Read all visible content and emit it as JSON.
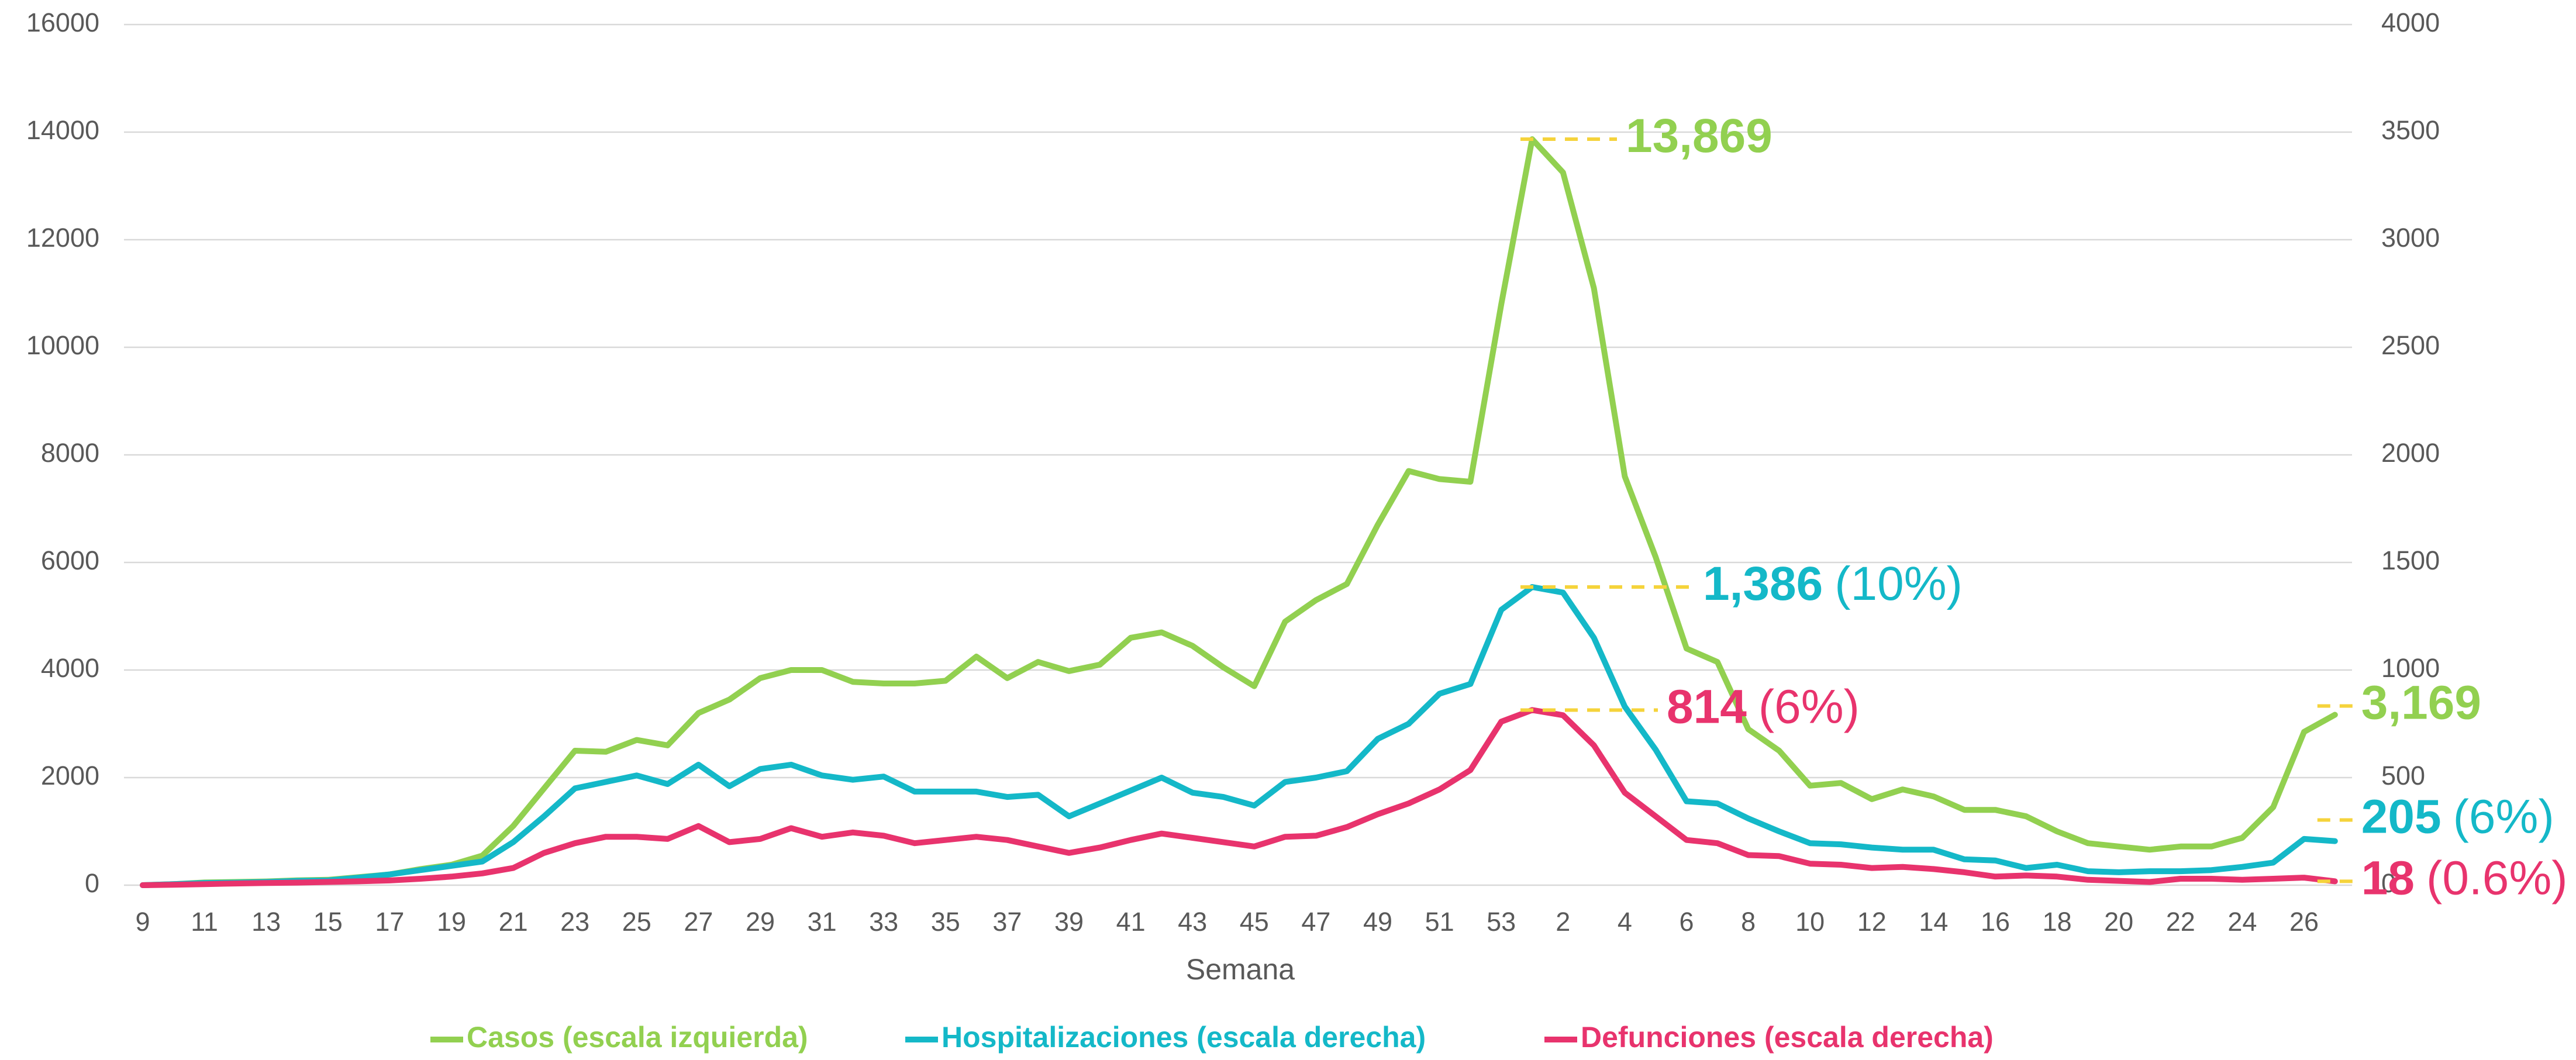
{
  "chart_data": {
    "type": "line",
    "x_label": "Semana",
    "categories": [
      "9",
      null,
      "11",
      null,
      "13",
      null,
      "15",
      null,
      "17",
      null,
      "19",
      null,
      "21",
      null,
      "23",
      null,
      "25",
      null,
      "27",
      null,
      "29",
      null,
      "31",
      null,
      "33",
      null,
      "35",
      null,
      "37",
      null,
      "39",
      null,
      "41",
      null,
      "43",
      null,
      "45",
      null,
      "47",
      null,
      "49",
      null,
      "51",
      null,
      "53",
      null,
      "2",
      null,
      "4",
      null,
      "6",
      null,
      "8",
      null,
      "10",
      null,
      "12",
      null,
      "14",
      null,
      "16",
      null,
      "18",
      null,
      "20",
      null,
      "22",
      null,
      "24",
      null,
      "26",
      null
    ],
    "ylim": [
      0,
      16000
    ],
    "yticks": [
      0,
      2000,
      4000,
      6000,
      8000,
      10000,
      12000,
      14000,
      16000
    ],
    "y2lim": [
      0,
      4000
    ],
    "y2ticks": [
      0,
      500,
      1000,
      1500,
      2000,
      2500,
      3000,
      3500,
      4000
    ],
    "grid": true,
    "legend": "bottom",
    "series": [
      {
        "name": "Casos (escala izquierda)",
        "color": "#92d050",
        "axis": "y",
        "values": [
          0,
          20,
          50,
          60,
          70,
          90,
          100,
          150,
          200,
          300,
          380,
          550,
          1100,
          1800,
          2500,
          2480,
          2700,
          2600,
          3200,
          3450,
          3850,
          4000,
          4000,
          3780,
          3750,
          3750,
          3800,
          4250,
          3850,
          4150,
          3980,
          4100,
          4600,
          4700,
          4450,
          4050,
          3700,
          4900,
          5300,
          5600,
          6700,
          7700,
          7550,
          7500,
          10800,
          13869,
          13250,
          11100,
          7600,
          6100,
          4400,
          4150,
          2900,
          2500,
          1850,
          1900,
          1600,
          1780,
          1650,
          1400,
          1400,
          1280,
          1000,
          780,
          720,
          660,
          720,
          720,
          880,
          1450,
          2850,
          3169
        ],
        "value_labels": [
          null,
          null,
          null,
          null,
          null,
          null,
          null,
          null,
          null,
          null,
          null,
          null,
          null,
          null,
          null,
          null,
          null,
          null,
          null,
          null,
          null,
          null,
          null,
          null,
          null,
          null,
          null,
          null,
          null,
          null,
          null,
          null,
          null,
          null,
          null,
          null,
          null,
          null,
          null,
          null,
          null,
          null,
          null,
          null,
          null,
          "13,869",
          null,
          null,
          null,
          null,
          null,
          null,
          null,
          null,
          null,
          null,
          null,
          null,
          null,
          null,
          null,
          null,
          null,
          null,
          null,
          null,
          null,
          null,
          null,
          null,
          null,
          "3,169"
        ]
      },
      {
        "name": "Hospitalizaciones (escala derecha)",
        "color": "#14b8c8",
        "axis": "y2",
        "values": [
          0,
          5,
          10,
          12,
          15,
          20,
          22,
          35,
          50,
          70,
          90,
          110,
          200,
          320,
          450,
          480,
          510,
          470,
          560,
          460,
          540,
          560,
          510,
          490,
          505,
          435,
          435,
          435,
          410,
          420,
          320,
          380,
          440,
          500,
          430,
          410,
          370,
          480,
          500,
          530,
          680,
          750,
          890,
          935,
          1280,
          1386,
          1360,
          1150,
          830,
          630,
          390,
          380,
          310,
          250,
          195,
          190,
          175,
          165,
          165,
          120,
          115,
          80,
          95,
          65,
          60,
          65,
          65,
          70,
          85,
          105,
          215,
          205
        ],
        "value_labels": [
          null,
          null,
          null,
          null,
          null,
          null,
          null,
          null,
          null,
          null,
          null,
          null,
          null,
          null,
          null,
          null,
          null,
          null,
          null,
          null,
          null,
          null,
          null,
          null,
          null,
          null,
          null,
          null,
          null,
          null,
          null,
          null,
          null,
          null,
          null,
          null,
          null,
          null,
          null,
          null,
          null,
          null,
          null,
          null,
          null,
          "1,386",
          null,
          null,
          null,
          null,
          null,
          null,
          null,
          null,
          null,
          null,
          null,
          null,
          null,
          null,
          null,
          null,
          null,
          null,
          null,
          null,
          null,
          null,
          null,
          null,
          null,
          "205"
        ],
        "share_labels": [
          null,
          null,
          null,
          null,
          null,
          null,
          null,
          null,
          null,
          null,
          null,
          null,
          null,
          null,
          null,
          null,
          null,
          null,
          null,
          null,
          null,
          null,
          null,
          null,
          null,
          null,
          null,
          null,
          null,
          null,
          null,
          null,
          null,
          null,
          null,
          null,
          null,
          null,
          null,
          null,
          null,
          null,
          null,
          null,
          null,
          "(10%)",
          null,
          null,
          null,
          null,
          null,
          null,
          null,
          null,
          null,
          null,
          null,
          null,
          null,
          null,
          null,
          null,
          null,
          null,
          null,
          null,
          null,
          null,
          null,
          null,
          null,
          "(6%)"
        ]
      },
      {
        "name": "Defunciones (escala derecha)",
        "color": "#e8336d",
        "axis": "y2",
        "values": [
          0,
          2,
          5,
          8,
          10,
          12,
          15,
          18,
          22,
          30,
          40,
          55,
          80,
          150,
          195,
          225,
          225,
          215,
          275,
          200,
          215,
          265,
          225,
          245,
          230,
          195,
          210,
          225,
          210,
          180,
          150,
          175,
          210,
          240,
          220,
          200,
          180,
          225,
          230,
          270,
          330,
          380,
          445,
          535,
          760,
          814,
          790,
          650,
          430,
          320,
          210,
          195,
          140,
          135,
          100,
          95,
          80,
          85,
          75,
          60,
          40,
          45,
          40,
          25,
          20,
          15,
          30,
          30,
          25,
          30,
          35,
          18
        ],
        "value_labels": [
          null,
          null,
          null,
          null,
          null,
          null,
          null,
          null,
          null,
          null,
          null,
          null,
          null,
          null,
          null,
          null,
          null,
          null,
          null,
          null,
          null,
          null,
          null,
          null,
          null,
          null,
          null,
          null,
          null,
          null,
          null,
          null,
          null,
          null,
          null,
          null,
          null,
          null,
          null,
          null,
          null,
          null,
          null,
          null,
          null,
          "814",
          null,
          null,
          null,
          null,
          null,
          null,
          null,
          null,
          null,
          null,
          null,
          null,
          null,
          null,
          null,
          null,
          null,
          null,
          null,
          null,
          null,
          null,
          null,
          null,
          null,
          "18"
        ],
        "share_labels": [
          null,
          null,
          null,
          null,
          null,
          null,
          null,
          null,
          null,
          null,
          null,
          null,
          null,
          null,
          null,
          null,
          null,
          null,
          null,
          null,
          null,
          null,
          null,
          null,
          null,
          null,
          null,
          null,
          null,
          null,
          null,
          null,
          null,
          null,
          null,
          null,
          null,
          null,
          null,
          null,
          null,
          null,
          null,
          null,
          null,
          "(6%)",
          null,
          null,
          null,
          null,
          null,
          null,
          null,
          null,
          null,
          null,
          null,
          null,
          null,
          null,
          null,
          null,
          null,
          null,
          null,
          null,
          null,
          null,
          null,
          null,
          null,
          "(0.6%)"
        ]
      }
    ]
  }
}
